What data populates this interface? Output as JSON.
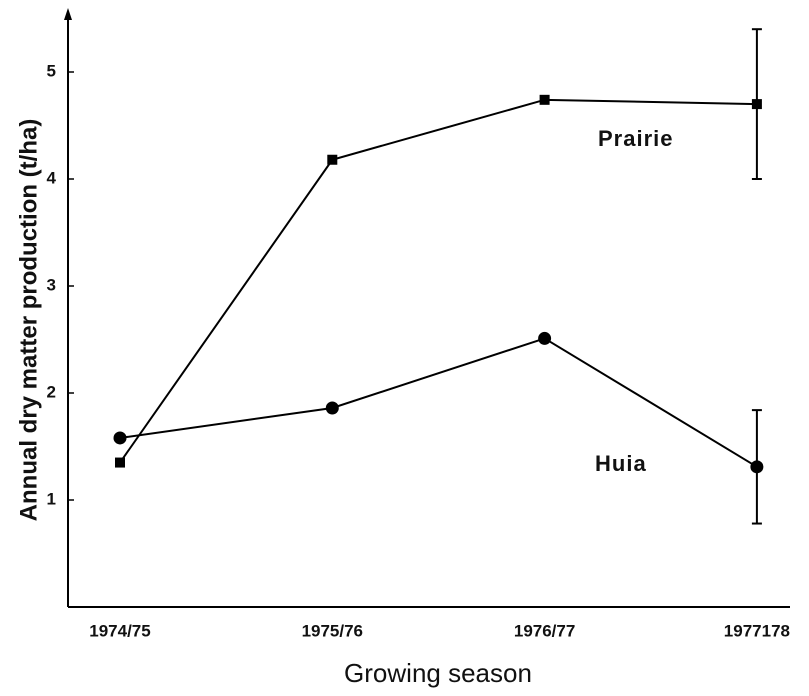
{
  "chart_data": {
    "type": "line",
    "xlabel": "Growing season",
    "ylabel": "Annual dry matter production (t/ha)",
    "categories": [
      "1974/75",
      "1975/76",
      "1976/77",
      "1977178"
    ],
    "series": [
      {
        "name": "Prairie",
        "color": "#000000",
        "marker": "square",
        "values": [
          1.35,
          4.18,
          4.74,
          4.7
        ],
        "errors": [
          null,
          null,
          null,
          0.7
        ]
      },
      {
        "name": "Huia",
        "color": "#000000",
        "marker": "circle",
        "values": [
          1.58,
          1.86,
          2.51,
          1.31
        ],
        "errors": [
          null,
          null,
          null,
          0.53
        ]
      }
    ],
    "ylim": [
      0,
      5.5
    ],
    "yticks": [
      1,
      2,
      3,
      4,
      5
    ],
    "grid": false
  }
}
